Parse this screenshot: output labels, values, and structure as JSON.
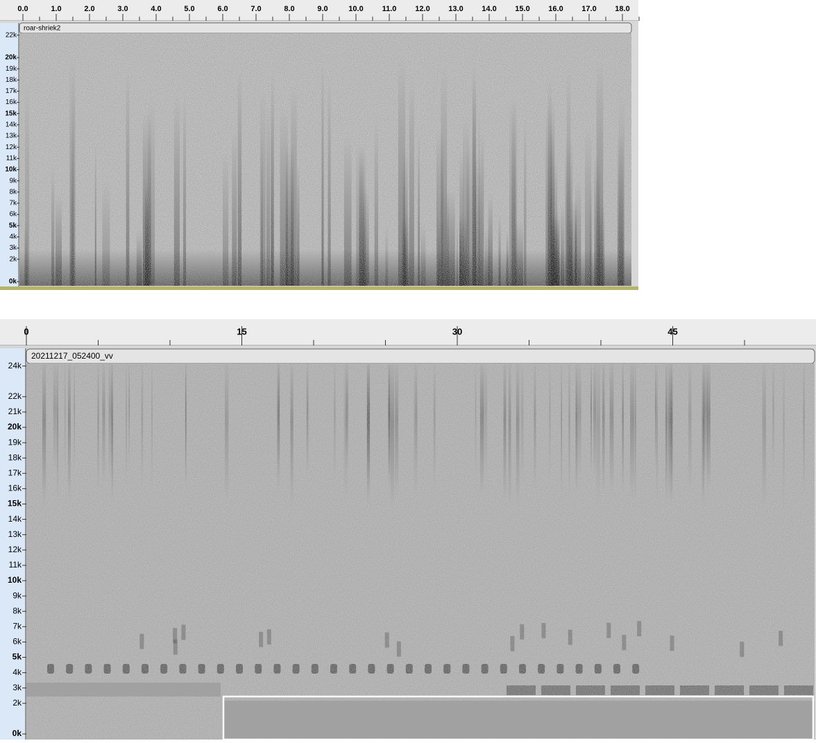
{
  "top_panel": {
    "ruler": [
      "0.0",
      "1.0",
      "2.0",
      "3.0",
      "4.0",
      "5.0",
      "6.0",
      "7.0",
      "8.0",
      "9.0",
      "10.0",
      "11.0",
      "12.0",
      "13.0",
      "14.0",
      "15.0",
      "16.0",
      "17.0",
      "18.0"
    ],
    "track_name": "roar-shriek2",
    "freq_labels": [
      "22k",
      "20k",
      "19k",
      "18k",
      "17k",
      "16k",
      "15k",
      "14k",
      "13k",
      "12k",
      "11k",
      "10k",
      "9k",
      "8k",
      "7k",
      "6k",
      "5k",
      "4k",
      "3k",
      "2k",
      "0k"
    ]
  },
  "bottom_panel": {
    "ruler": [
      "0",
      "15",
      "30",
      "45"
    ],
    "track_name": "20211217_052400_vv",
    "freq_labels": [
      "24k",
      "22k",
      "21k",
      "20k",
      "19k",
      "18k",
      "17k",
      "16k",
      "15k",
      "14k",
      "13k",
      "12k",
      "11k",
      "10k",
      "9k",
      "8k",
      "7k",
      "6k",
      "5k",
      "4k",
      "3k",
      "2k",
      "0k"
    ]
  }
}
